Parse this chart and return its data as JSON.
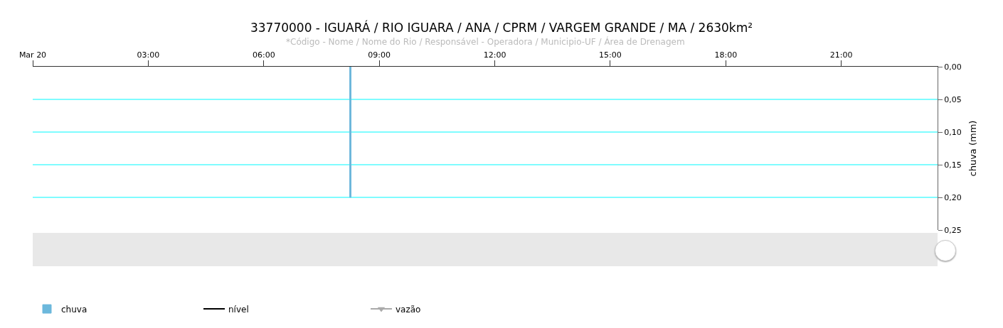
{
  "chart_data": {
    "type": "bar",
    "title": "33770000 - IGUARÁ / RIO IGUARA / ANA / CPRM / VARGEM GRANDE / MA / 2630km²",
    "subtitle": "*Código - Nome / Nome do Rio / Responsável - Operadora / Municipio-UF / Área de Drenagem",
    "ylabel": "chuva (mm)",
    "x": [
      8.25
    ],
    "series": [
      {
        "name": "chuva",
        "color": "#6cb8dc",
        "values": [
          0.2
        ]
      },
      {
        "name": "nível",
        "type": "line",
        "color": "#000000",
        "values": [
          null
        ]
      },
      {
        "name": "vazão",
        "type": "line",
        "color": "#aaaaaa",
        "marker": "triangle",
        "values": [
          null
        ]
      }
    ],
    "xlim": [
      0,
      23.5
    ],
    "xticks": [
      {
        "value": 0,
        "label": "Mar 20"
      },
      {
        "value": 3,
        "label": "03:00"
      },
      {
        "value": 6,
        "label": "06:00"
      },
      {
        "value": 9,
        "label": "09:00"
      },
      {
        "value": 12,
        "label": "12:00"
      },
      {
        "value": 15,
        "label": "15:00"
      },
      {
        "value": 18,
        "label": "18:00"
      },
      {
        "value": 21,
        "label": "21:00"
      }
    ],
    "ylim": [
      0.25,
      0
    ],
    "yticks": [
      {
        "value": 0,
        "label": "0,00"
      },
      {
        "value": 0.05,
        "label": "0,05"
      },
      {
        "value": 0.1,
        "label": "0,10"
      },
      {
        "value": 0.15,
        "label": "0,15"
      },
      {
        "value": 0.2,
        "label": "0,20"
      },
      {
        "value": 0.25,
        "label": "0,25"
      }
    ],
    "grid": "y",
    "legend": "bottom left"
  }
}
